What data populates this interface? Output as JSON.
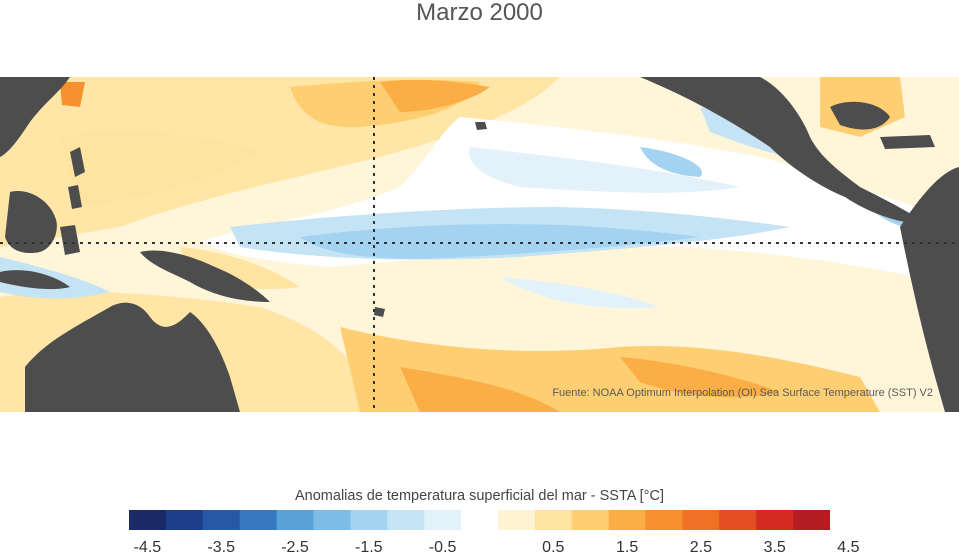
{
  "title": "Marzo 2000",
  "source": "Fuente: NOAA Optimum Interpolation (OI) Sea Surface Temperature (SST) V2",
  "colorbar": {
    "title": "Anomalias de temperatura superficial del mar - SSTA  [°C]",
    "tick_labels": [
      "-4.5",
      "-3.5",
      "-2.5",
      "-1.5",
      "-0.5",
      "0.5",
      "1.5",
      "2.5",
      "3.5",
      "4.5"
    ],
    "colors": [
      "#1a2a66",
      "#1f3f8a",
      "#2559a8",
      "#3677c0",
      "#58a2d8",
      "#7cbce6",
      "#a3d3f0",
      "#c4e3f5",
      "#e2f1fa",
      "#ffffff",
      "#fff4d2",
      "#ffe3a0",
      "#fecf72",
      "#fbae45",
      "#f7902e",
      "#f07124",
      "#e34e22",
      "#d42a22",
      "#b51d22"
    ]
  },
  "map": {
    "land_color": "#4d4d4d",
    "reference_lines": [
      "Ecuador",
      "180°"
    ]
  }
}
